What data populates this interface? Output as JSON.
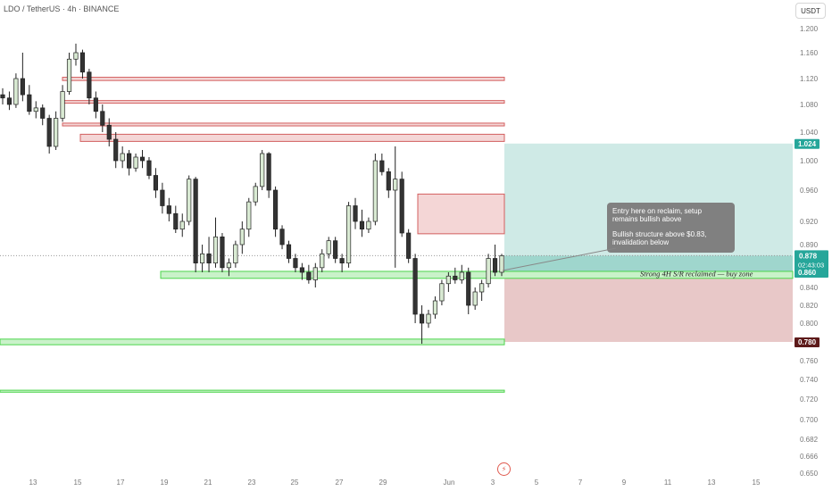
{
  "header": {
    "title": "LDO / TetherUS · 4h · BINANCE"
  },
  "axis": {
    "currency": "USDT"
  },
  "event_icon": "lightning-icon",
  "colors": {
    "up": "#26a69a",
    "candle_up_body": "#d9ead3",
    "candle_down_body": "#333333",
    "wick": "#222222",
    "target_zone": "#cfeae6",
    "stop_zone": "#e8c8c8",
    "resistance": "#f4d6d6",
    "resistance_border": "#d35f5f",
    "support": "#c9f2c9",
    "support_border": "#4cd44c",
    "badge_green": "#26a69a",
    "badge_dark": "#5d1a1a",
    "callout": "#808080"
  },
  "chart_data": {
    "type": "candlestick",
    "symbol": "LDO / TetherUS",
    "timeframe": "4h",
    "exchange": "BINANCE",
    "y_ticks": [
      "1.200",
      "1.160",
      "1.120",
      "1.080",
      "1.040",
      "1.000",
      "0.960",
      "0.920",
      "0.890",
      "0.860",
      "0.840",
      "0.820",
      "0.800",
      "0.780",
      "0.760",
      "0.740",
      "0.720",
      "0.700",
      "0.682",
      "0.666",
      "0.650"
    ],
    "x_ticks": [
      "13",
      "15",
      "17",
      "19",
      "21",
      "23",
      "25",
      "27",
      "29",
      "Jun",
      "3",
      "5",
      "7",
      "9",
      "11",
      "13",
      "15"
    ],
    "price_badges": [
      {
        "label": "1.024",
        "price": 1.024,
        "kind": "target"
      },
      {
        "label": "0.878",
        "price": 0.878,
        "kind": "current",
        "countdown": "02:43:03"
      },
      {
        "label": "0.860",
        "price": 0.86,
        "kind": "entry"
      },
      {
        "label": "0.780",
        "price": 0.78,
        "kind": "stop"
      }
    ],
    "resistance_zones": [
      {
        "top": 1.122,
        "bottom": 1.117
      },
      {
        "top": 1.086,
        "bottom": 1.082
      },
      {
        "top": 1.053,
        "bottom": 1.049
      },
      {
        "top": 1.037,
        "bottom": 1.027
      },
      {
        "top": 0.955,
        "bottom": 0.904
      }
    ],
    "support_zones": [
      {
        "top": 0.861,
        "bottom": 0.852
      },
      {
        "top": 0.783,
        "bottom": 0.777
      },
      {
        "top": 0.729,
        "bottom": 0.727
      }
    ],
    "position": {
      "entry": 0.86,
      "target": 1.024,
      "stop": 0.78
    },
    "candles": [
      [
        1.095,
        1.105,
        1.08,
        1.09
      ],
      [
        1.09,
        1.1,
        1.072,
        1.08
      ],
      [
        1.08,
        1.128,
        1.075,
        1.12
      ],
      [
        1.12,
        1.16,
        1.085,
        1.095
      ],
      [
        1.095,
        1.11,
        1.065,
        1.07
      ],
      [
        1.07,
        1.085,
        1.06,
        1.075
      ],
      [
        1.075,
        1.08,
        1.05,
        1.06
      ],
      [
        1.06,
        1.065,
        1.01,
        1.02
      ],
      [
        1.02,
        1.07,
        1.015,
        1.06
      ],
      [
        1.06,
        1.11,
        1.055,
        1.1
      ],
      [
        1.1,
        1.16,
        1.095,
        1.15
      ],
      [
        1.15,
        1.175,
        1.14,
        1.16
      ],
      [
        1.16,
        1.165,
        1.12,
        1.13
      ],
      [
        1.13,
        1.135,
        1.08,
        1.09
      ],
      [
        1.09,
        1.1,
        1.06,
        1.07
      ],
      [
        1.07,
        1.08,
        1.04,
        1.05
      ],
      [
        1.05,
        1.06,
        1.02,
        1.03
      ],
      [
        1.03,
        1.04,
        0.99,
        1.0
      ],
      [
        1.0,
        1.02,
        0.99,
        1.01
      ],
      [
        1.01,
        1.015,
        0.98,
        0.99
      ],
      [
        0.99,
        1.01,
        0.985,
        1.005
      ],
      [
        1.005,
        1.015,
        0.99,
        1.0
      ],
      [
        1.0,
        1.005,
        0.975,
        0.98
      ],
      [
        0.98,
        0.99,
        0.95,
        0.96
      ],
      [
        0.96,
        0.97,
        0.93,
        0.94
      ],
      [
        0.94,
        0.95,
        0.92,
        0.93
      ],
      [
        0.93,
        0.94,
        0.905,
        0.91
      ],
      [
        0.91,
        0.93,
        0.9,
        0.92
      ],
      [
        0.92,
        0.98,
        0.915,
        0.975
      ],
      [
        0.975,
        0.978,
        0.86,
        0.87
      ],
      [
        0.87,
        0.89,
        0.86,
        0.88
      ],
      [
        0.88,
        0.9,
        0.86,
        0.87
      ],
      [
        0.87,
        0.925,
        0.865,
        0.9
      ],
      [
        0.9,
        0.905,
        0.86,
        0.865
      ],
      [
        0.865,
        0.875,
        0.855,
        0.87
      ],
      [
        0.87,
        0.895,
        0.865,
        0.89
      ],
      [
        0.89,
        0.92,
        0.88,
        0.91
      ],
      [
        0.91,
        0.95,
        0.9,
        0.945
      ],
      [
        0.945,
        0.97,
        0.94,
        0.965
      ],
      [
        0.965,
        1.015,
        0.96,
        1.01
      ],
      [
        1.01,
        1.012,
        0.95,
        0.96
      ],
      [
        0.96,
        0.965,
        0.9,
        0.91
      ],
      [
        0.91,
        0.915,
        0.885,
        0.89
      ],
      [
        0.89,
        0.895,
        0.87,
        0.875
      ],
      [
        0.875,
        0.88,
        0.86,
        0.865
      ],
      [
        0.865,
        0.87,
        0.85,
        0.86
      ],
      [
        0.86,
        0.868,
        0.845,
        0.85
      ],
      [
        0.85,
        0.87,
        0.84,
        0.865
      ],
      [
        0.865,
        0.885,
        0.86,
        0.88
      ],
      [
        0.88,
        0.9,
        0.875,
        0.895
      ],
      [
        0.895,
        0.9,
        0.87,
        0.875
      ],
      [
        0.875,
        0.88,
        0.86,
        0.87
      ],
      [
        0.87,
        0.945,
        0.865,
        0.94
      ],
      [
        0.94,
        0.95,
        0.91,
        0.92
      ],
      [
        0.92,
        0.935,
        0.9,
        0.91
      ],
      [
        0.91,
        0.925,
        0.905,
        0.92
      ],
      [
        0.92,
        1.01,
        0.915,
        1.0
      ],
      [
        1.0,
        1.01,
        0.98,
        0.985
      ],
      [
        0.985,
        0.99,
        0.95,
        0.96
      ],
      [
        0.96,
        1.02,
        0.865,
        0.975
      ],
      [
        0.975,
        0.985,
        0.9,
        0.905
      ],
      [
        0.905,
        0.91,
        0.87,
        0.875
      ],
      [
        0.875,
        0.88,
        0.8,
        0.81
      ],
      [
        0.81,
        0.82,
        0.778,
        0.8
      ],
      [
        0.8,
        0.815,
        0.795,
        0.81
      ],
      [
        0.81,
        0.83,
        0.805,
        0.825
      ],
      [
        0.825,
        0.85,
        0.82,
        0.845
      ],
      [
        0.845,
        0.86,
        0.835,
        0.855
      ],
      [
        0.855,
        0.865,
        0.845,
        0.85
      ],
      [
        0.85,
        0.868,
        0.845,
        0.86
      ],
      [
        0.86,
        0.865,
        0.81,
        0.82
      ],
      [
        0.82,
        0.84,
        0.815,
        0.835
      ],
      [
        0.835,
        0.85,
        0.825,
        0.845
      ],
      [
        0.845,
        0.88,
        0.84,
        0.875
      ],
      [
        0.875,
        0.89,
        0.855,
        0.86
      ],
      [
        0.86,
        0.88,
        0.855,
        0.878
      ]
    ]
  },
  "annotations": {
    "callout_line1": "Entry here on reclaim, setup",
    "callout_line2": "remains bullish above",
    "callout_line3": "Bullish structure above $0.83,",
    "callout_line4": "invalidation below",
    "zone_label": "Strong 4H S/R reclaimed — buy zone"
  }
}
